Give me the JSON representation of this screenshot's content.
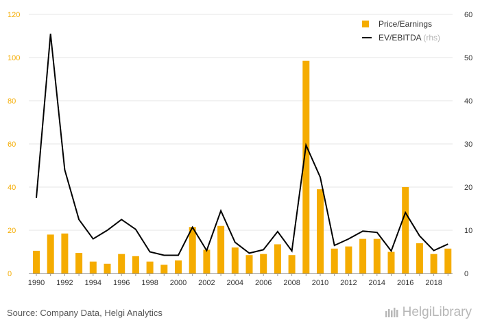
{
  "chart_data": {
    "type": "bar",
    "categories": [
      "1990",
      "1991",
      "1992",
      "1993",
      "1994",
      "1995",
      "1996",
      "1997",
      "1998",
      "1999",
      "2000",
      "2001",
      "2002",
      "2003",
      "2004",
      "2005",
      "2006",
      "2007",
      "2008",
      "2009",
      "2010",
      "2011",
      "2012",
      "2013",
      "2014",
      "2015",
      "2016",
      "2017",
      "2018",
      "2019"
    ],
    "x_tick_labels": [
      "1990",
      "1992",
      "1994",
      "1996",
      "1998",
      "2000",
      "2002",
      "2004",
      "2006",
      "2008",
      "2010",
      "2012",
      "2014",
      "2016",
      "2018"
    ],
    "y_left": {
      "ylim": [
        0,
        120
      ],
      "ticks": [
        "0",
        "20",
        "40",
        "60",
        "80",
        "100",
        "120"
      ]
    },
    "y_right": {
      "ylim": [
        0,
        60
      ],
      "ticks": [
        "0",
        "10",
        "20",
        "30",
        "40",
        "50",
        "60"
      ]
    },
    "series": [
      {
        "name": "Price/Earnings",
        "type": "bar",
        "axis": "left",
        "color": "#f5ac00",
        "values": [
          10.5,
          18,
          18.5,
          9.5,
          5.5,
          4.5,
          9,
          8,
          5.5,
          4,
          6,
          21.5,
          11,
          22,
          12,
          8.5,
          9,
          13.5,
          8.5,
          98.5,
          39,
          11.5,
          12.5,
          16,
          16,
          10,
          40,
          14,
          9,
          11.5
        ]
      },
      {
        "name": "EV/EBITDA",
        "name_suffix": "(rhs)",
        "type": "line",
        "axis": "right",
        "color": "#000000",
        "values": [
          17.5,
          55.5,
          24,
          12.5,
          8,
          10,
          12.5,
          10.2,
          5,
          4.2,
          4.2,
          10.7,
          5.3,
          14.5,
          7.2,
          4.7,
          5.5,
          9.7,
          5.2,
          29.7,
          22.3,
          6.5,
          8,
          9.8,
          9.5,
          5.2,
          14.1,
          8.7,
          5.3,
          6.8
        ]
      }
    ],
    "legend_position": "top-right",
    "grid": true
  },
  "source_text": "Source: Company Data, Helgi Analytics",
  "brand": {
    "name": "HelgiLibrary",
    "icon": "library-logo-icon"
  }
}
